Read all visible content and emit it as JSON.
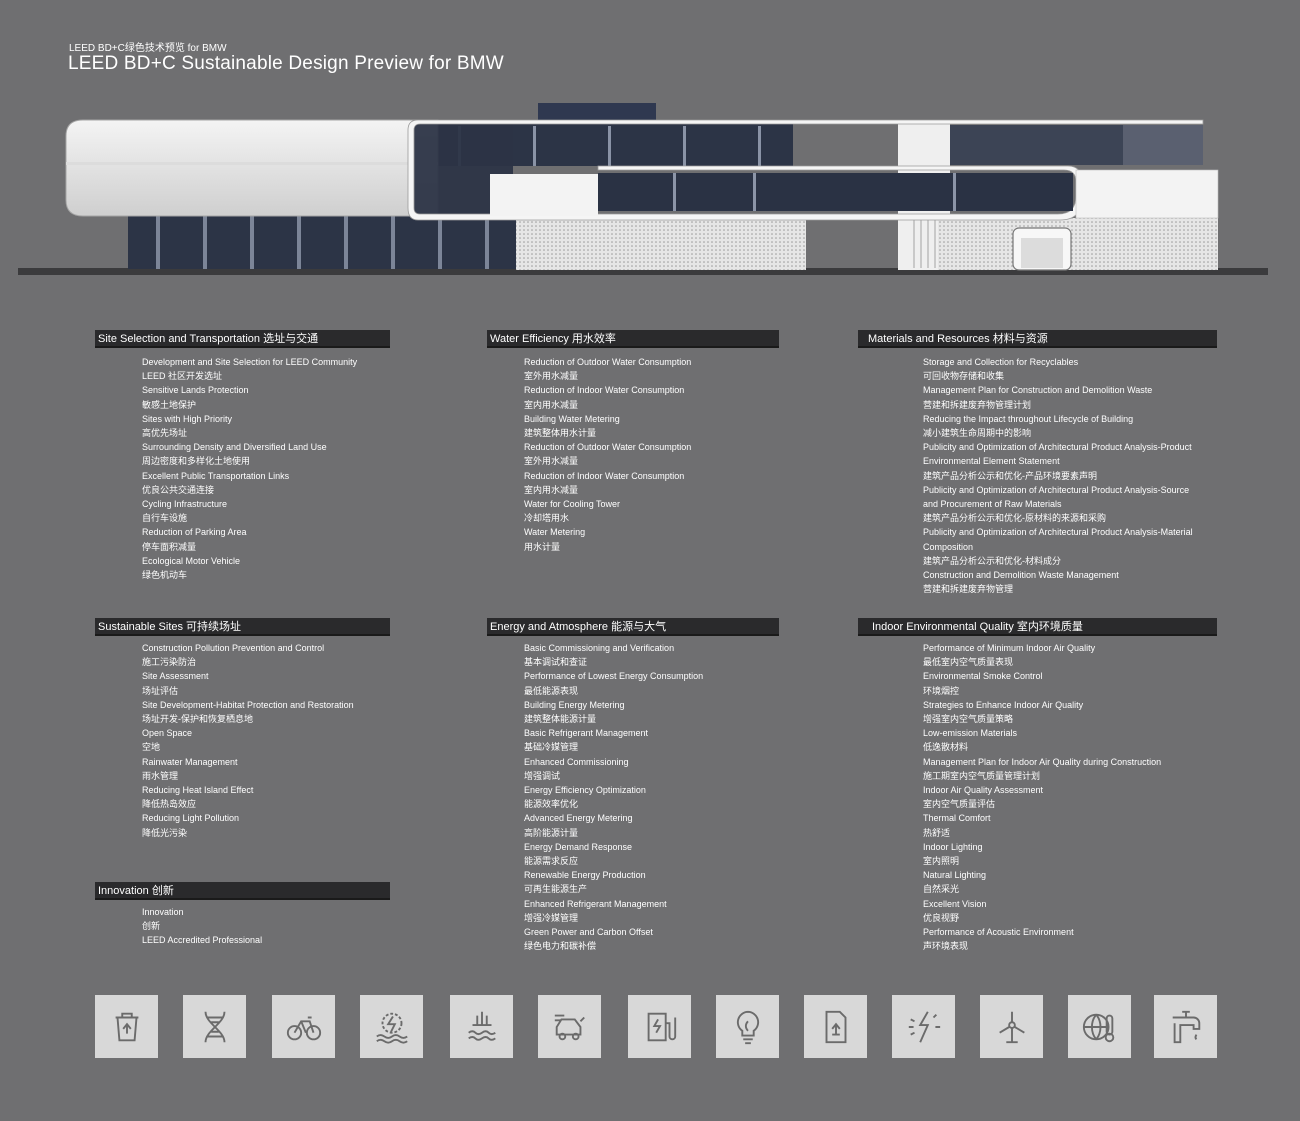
{
  "header": {
    "subtitle_cn": "LEED BD+C绿色技术预览 for BMW",
    "title": "LEED BD+C Sustainable Design Preview for BMW"
  },
  "sections": {
    "site_selection": {
      "title": "Site Selection and Transportation 选址与交通",
      "items": [
        "Development and Site Selection for LEED Community",
        "LEED 社区开发选址",
        "Sensitive Lands Protection",
        "敏感土地保护",
        "Sites with High Priority",
        "高优先场址",
        "Surrounding Density and Diversified Land Use",
        "周边密度和多样化土地使用",
        "Excellent Public Transportation Links",
        "优良公共交通连接",
        "Cycling Infrastructure",
        "自行车设施",
        "Reduction of Parking Area",
        "停车面积减量",
        "Ecological Motor Vehicle",
        "绿色机动车"
      ]
    },
    "water": {
      "title": "Water Efficiency 用水效率",
      "items": [
        "Reduction of Outdoor Water Consumption",
        "室外用水减量",
        "Reduction of Indoor Water Consumption",
        "室内用水减量",
        "Building Water Metering",
        "建筑整体用水计量",
        "Reduction of Outdoor Water Consumption",
        "室外用水减量",
        "Reduction of Indoor Water Consumption",
        "室内用水减量",
        "Water for Cooling Tower",
        "冷却塔用水",
        "Water Metering",
        "用水计量"
      ]
    },
    "materials": {
      "title": "Materials and Resources 材料与资源",
      "items": [
        "Storage and Collection for Recyclables",
        "可回收物存储和收集",
        "Management Plan for Construction and Demolition Waste",
        "营建和拆建废弃物管理计划",
        "Reducing the Impact throughout Lifecycle of Building",
        "减小建筑生命周期中的影响",
        "Publicity and Optimization of Architectural Product Analysis-Product",
        "Environmental Element Statement",
        "建筑产品分析公示和优化-产品环境要素声明",
        "Publicity and Optimization of Architectural Product Analysis-Source",
        "and Procurement of Raw Materials",
        "建筑产品分析公示和优化-原材料的来源和采购",
        "Publicity and Optimization of Architectural Product Analysis-Material",
        "Composition",
        "建筑产品分析公示和优化-材料成分",
        "Construction and Demolition Waste Management",
        "营建和拆建废弃物管理"
      ]
    },
    "sustainable_sites": {
      "title": "Sustainable Sites 可持续场址",
      "items": [
        "Construction Pollution Prevention and Control",
        "施工污染防治",
        "Site Assessment",
        "场址评估",
        "Site Development-Habitat Protection and Restoration",
        "场址开发-保护和恢复栖息地",
        "Open Space",
        "空地",
        "Rainwater Management",
        "雨水管理",
        "Reducing Heat Island Effect",
        "降低热岛效应",
        "Reducing Light Pollution",
        "降低光污染"
      ]
    },
    "energy": {
      "title": "Energy and Atmosphere 能源与大气",
      "items": [
        "Basic Commissioning and Verification",
        "基本调试和查证",
        "Performance of Lowest Energy Consumption",
        "最低能源表现",
        "Building Energy Metering",
        "建筑整体能源计量",
        "Basic Refrigerant Management",
        "基础冷媒管理",
        "Enhanced Commissioning",
        "增强调试",
        "Energy Efficiency Optimization",
        "能源效率优化",
        "Advanced Energy Metering",
        "高阶能源计量",
        "Energy Demand Response",
        "能源需求反应",
        "Renewable Energy Production",
        "可再生能源生产",
        "Enhanced Refrigerant Management",
        "增强冷媒管理",
        "Green Power and Carbon Offset",
        "绿色电力和碳补偿"
      ]
    },
    "indoor": {
      "title": "Indoor Environmental Quality 室内环境质量",
      "items": [
        "Performance of Minimum Indoor Air Quality",
        "最低室内空气质量表现",
        "Environmental Smoke Control",
        "环境烟控",
        "Strategies to Enhance Indoor Air Quality",
        "增强室内空气质量策略",
        "Low-emission Materials",
        "低逸散材料",
        "Management Plan for Indoor Air Quality during Construction",
        "施工期室内空气质量管理计划",
        "Indoor Air Quality Assessment",
        "室内空气质量评估",
        "Thermal Comfort",
        "热舒适",
        "Indoor Lighting",
        "室内照明",
        "Natural Lighting",
        "自然采光",
        "Excellent Vision",
        "优良视野",
        "Performance of Acoustic Environment",
        "声环境表现"
      ]
    },
    "innovation": {
      "title": "Innovation 创新",
      "items": [
        "Innovation",
        "创新",
        "LEED Accredited Professional"
      ]
    }
  },
  "icons": [
    "recycle-bin-icon",
    "dna-icon",
    "bicycle-icon",
    "water-energy-icon",
    "water-drain-icon",
    "electric-car-icon",
    "ev-charger-icon",
    "light-bulb-icon",
    "recycle-document-icon",
    "lightning-energy-icon",
    "wind-turbine-icon",
    "globe-thermometer-icon",
    "faucet-icon"
  ],
  "colors": {
    "background": "#6f6f71",
    "section_bar": "#2a2a2c",
    "icon_tile": "#d8d8d8",
    "icon_stroke": "#6b6b6b",
    "glass": "#2c3446"
  }
}
